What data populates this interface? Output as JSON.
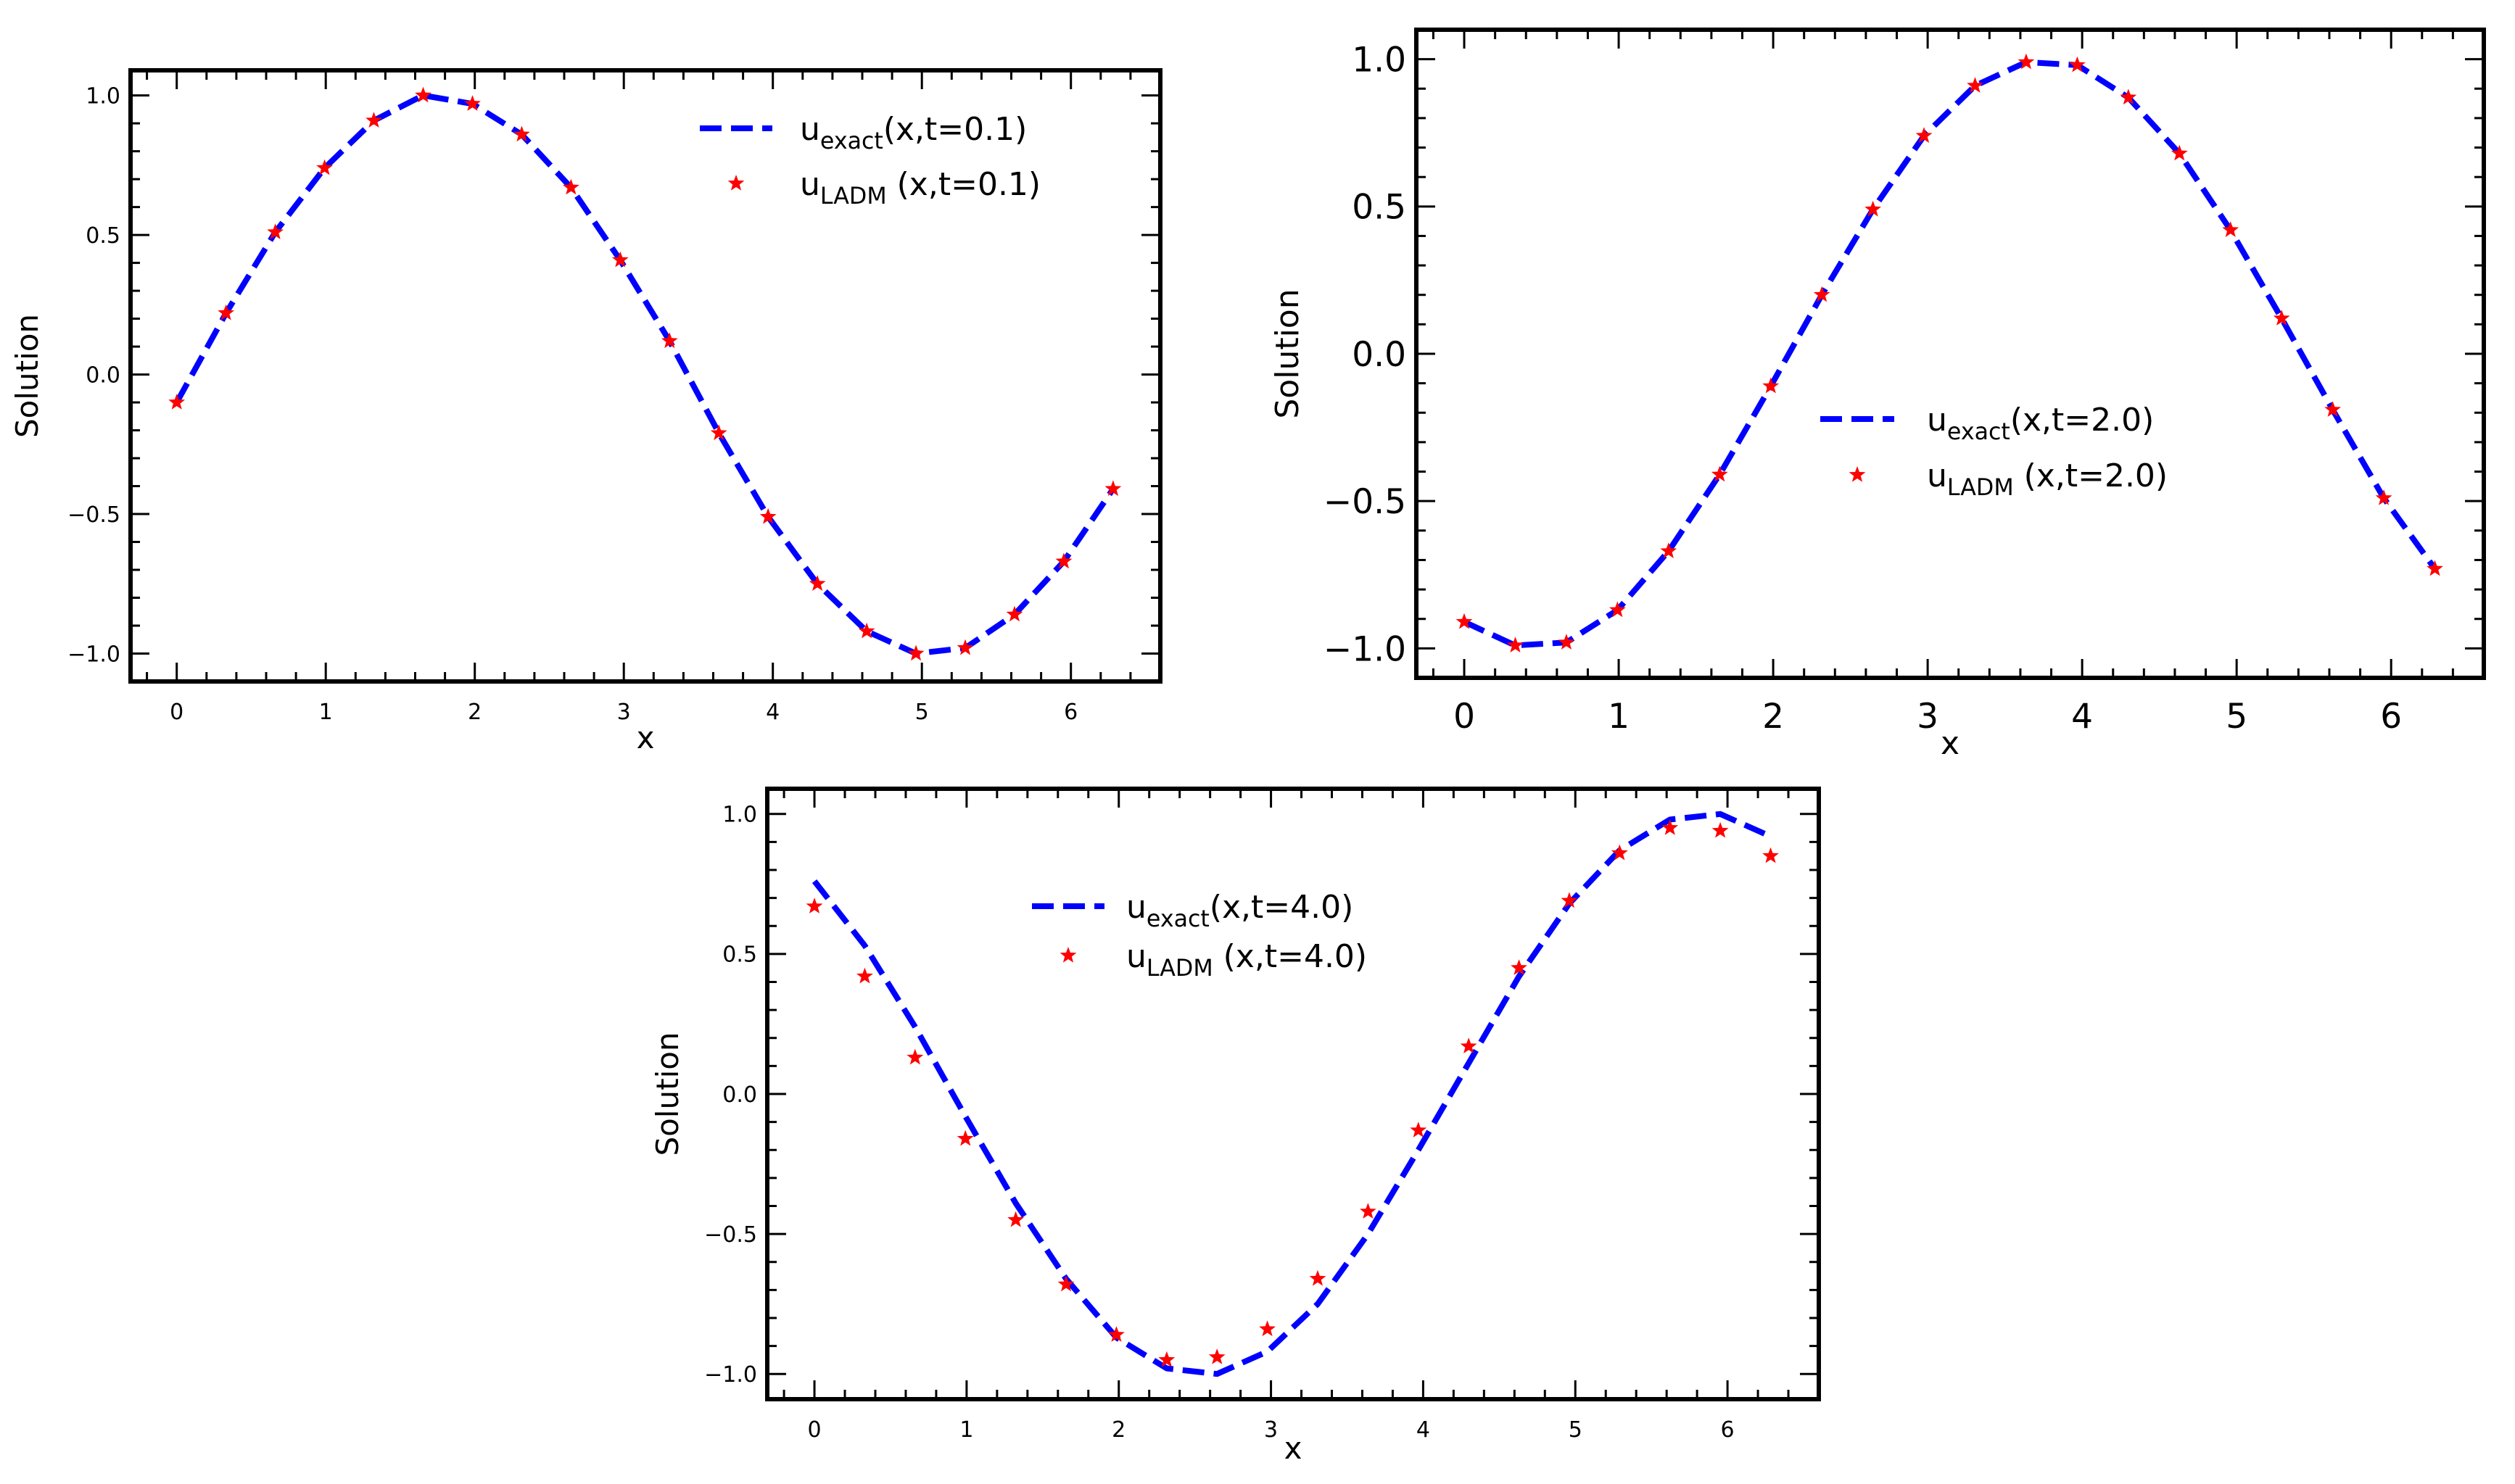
{
  "chart_data": [
    {
      "type": "line",
      "title": "",
      "xlabel": "x",
      "ylabel": "Solution",
      "xlim": [
        -0.31,
        6.6
      ],
      "ylim": [
        -1.1,
        1.09
      ],
      "xticks": [
        "0",
        "1",
        "2",
        "3",
        "4",
        "5",
        "6"
      ],
      "yticks": [
        "−1.0",
        "−0.5",
        "0.0",
        "0.5",
        "1.0"
      ],
      "series": [
        {
          "name": "exact",
          "legend_base": "u",
          "legend_sub": "exact",
          "legend_rest": "(x,t=0.1)",
          "style": "dashed",
          "color": "#0000ff",
          "x": [
            0,
            0.3307,
            0.6614,
            0.9921,
            1.3228,
            1.6535,
            1.9842,
            2.3149,
            2.6456,
            2.9762,
            3.3069,
            3.6376,
            3.9683,
            4.299,
            4.6297,
            4.9604,
            5.2911,
            5.6218,
            5.9525,
            6.2832
          ],
          "y": [
            -0.1,
            0.22,
            0.51,
            0.74,
            0.91,
            1.0,
            0.97,
            0.86,
            0.67,
            0.41,
            0.12,
            -0.21,
            -0.51,
            -0.75,
            -0.92,
            -1.0,
            -0.98,
            -0.86,
            -0.67,
            -0.41
          ]
        },
        {
          "name": "LADM",
          "legend_base": "u",
          "legend_sub": "LADM",
          "legend_rest": " (x,t=0.1)",
          "style": "marker",
          "color": "#ff0000",
          "x": [
            0,
            0.3307,
            0.6614,
            0.9921,
            1.3228,
            1.6535,
            1.9842,
            2.3149,
            2.6456,
            2.9762,
            3.3069,
            3.6376,
            3.9683,
            4.299,
            4.6297,
            4.9604,
            5.2911,
            5.6218,
            5.9525,
            6.2832
          ],
          "y": [
            -0.1,
            0.22,
            0.51,
            0.74,
            0.91,
            1.0,
            0.97,
            0.86,
            0.67,
            0.41,
            0.12,
            -0.21,
            -0.51,
            -0.75,
            -0.92,
            -1.0,
            -0.98,
            -0.86,
            -0.67,
            -0.41
          ]
        }
      ],
      "legend_position": "upper right"
    },
    {
      "type": "line",
      "title": "",
      "xlabel": "x",
      "ylabel": "Solution",
      "xlim": [
        -0.31,
        6.6
      ],
      "ylim": [
        -1.1,
        1.1
      ],
      "xticks": [
        "0",
        "1",
        "2",
        "3",
        "4",
        "5",
        "6"
      ],
      "yticks": [
        "−1.0",
        "−0.5",
        "0.0",
        "0.5",
        "1.0"
      ],
      "series": [
        {
          "name": "exact",
          "legend_base": "u",
          "legend_sub": "exact",
          "legend_rest": "(x,t=2.0)",
          "style": "dashed",
          "color": "#0000ff",
          "x": [
            0,
            0.3307,
            0.6614,
            0.9921,
            1.3228,
            1.6535,
            1.9842,
            2.3149,
            2.6456,
            2.9762,
            3.3069,
            3.6376,
            3.9683,
            4.299,
            4.6297,
            4.9604,
            5.2911,
            5.6218,
            5.9525,
            6.2832
          ],
          "y": [
            -0.91,
            -0.99,
            -0.98,
            -0.87,
            -0.67,
            -0.41,
            -0.11,
            0.2,
            0.49,
            0.74,
            0.91,
            0.99,
            0.98,
            0.87,
            0.68,
            0.42,
            0.12,
            -0.19,
            -0.49,
            -0.73
          ]
        },
        {
          "name": "LADM",
          "legend_base": "u",
          "legend_sub": "LADM",
          "legend_rest": " (x,t=2.0)",
          "style": "marker",
          "color": "#ff0000",
          "x": [
            0,
            0.3307,
            0.6614,
            0.9921,
            1.3228,
            1.6535,
            1.9842,
            2.3149,
            2.6456,
            2.9762,
            3.3069,
            3.6376,
            3.9683,
            4.299,
            4.6297,
            4.9604,
            5.2911,
            5.6218,
            5.9525,
            6.2832
          ],
          "y": [
            -0.91,
            -0.99,
            -0.98,
            -0.87,
            -0.67,
            -0.41,
            -0.11,
            0.2,
            0.49,
            0.74,
            0.91,
            0.99,
            0.98,
            0.87,
            0.68,
            0.42,
            0.12,
            -0.19,
            -0.49,
            -0.73
          ]
        }
      ],
      "legend_position": "center right"
    },
    {
      "type": "line",
      "title": "",
      "xlabel": "x",
      "ylabel": "Solution",
      "xlim": [
        -0.31,
        6.6
      ],
      "ylim": [
        -1.09,
        1.09
      ],
      "xticks": [
        "0",
        "1",
        "2",
        "3",
        "4",
        "5",
        "6"
      ],
      "yticks": [
        "−1.0",
        "−0.5",
        "0.0",
        "0.5",
        "1.0"
      ],
      "series": [
        {
          "name": "exact",
          "legend_base": "u",
          "legend_sub": "exact",
          "legend_rest": "(x,t=4.0)",
          "style": "dashed",
          "color": "#0000ff",
          "x": [
            0,
            0.3307,
            0.6614,
            0.9921,
            1.3228,
            1.6535,
            1.9842,
            2.3149,
            2.6456,
            2.9762,
            3.3069,
            3.6376,
            3.9683,
            4.299,
            4.6297,
            4.9604,
            5.2911,
            5.6218,
            5.9525,
            6.2832
          ],
          "y": [
            0.76,
            0.53,
            0.24,
            -0.08,
            -0.39,
            -0.66,
            -0.87,
            -0.98,
            -1.0,
            -0.92,
            -0.75,
            -0.5,
            -0.2,
            0.11,
            0.42,
            0.68,
            0.87,
            0.98,
            1.0,
            0.92
          ]
        },
        {
          "name": "LADM",
          "legend_base": "u",
          "legend_sub": "LADM",
          "legend_rest": " (x,t=4.0)",
          "style": "marker",
          "color": "#ff0000",
          "x": [
            0,
            0.3307,
            0.6614,
            0.9921,
            1.3228,
            1.6535,
            1.9842,
            2.3149,
            2.6456,
            2.9762,
            3.3069,
            3.6376,
            3.9683,
            4.299,
            4.6297,
            4.9604,
            5.2911,
            5.6218,
            5.9525,
            6.2832
          ],
          "y": [
            0.67,
            0.42,
            0.13,
            -0.16,
            -0.45,
            -0.68,
            -0.86,
            -0.95,
            -0.94,
            -0.84,
            -0.66,
            -0.42,
            -0.13,
            0.17,
            0.45,
            0.69,
            0.86,
            0.95,
            0.94,
            0.85
          ]
        }
      ],
      "legend_position": "upper left"
    }
  ]
}
